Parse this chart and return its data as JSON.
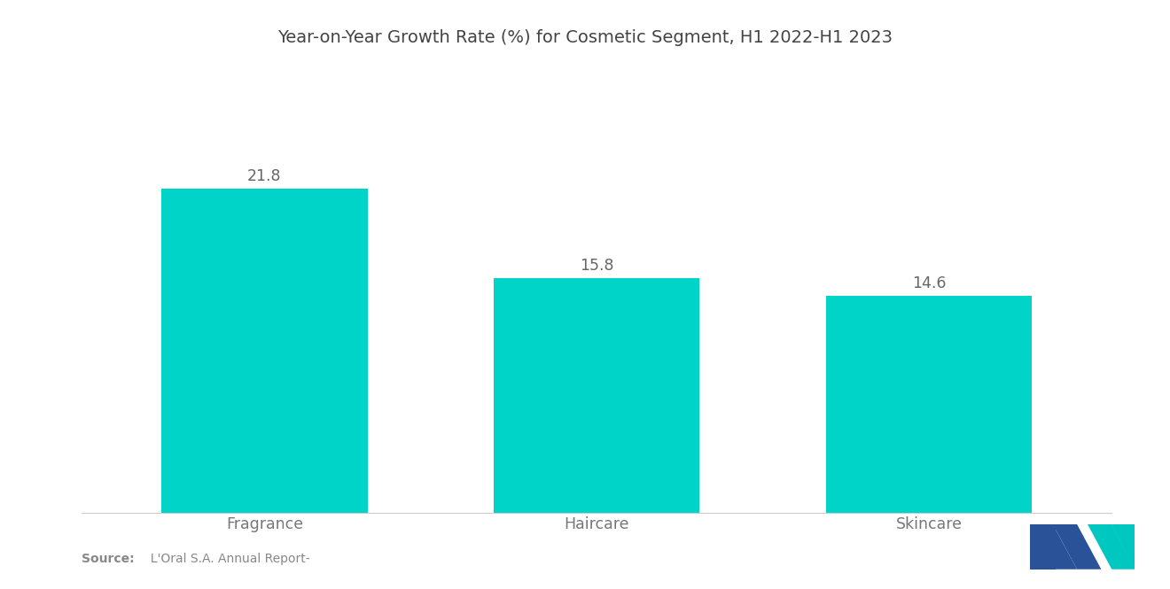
{
  "title": "Year-on-Year Growth Rate (%) for Cosmetic Segment, H1 2022-H1 2023",
  "categories": [
    "Fragrance",
    "Haircare",
    "Skincare"
  ],
  "values": [
    21.8,
    15.8,
    14.6
  ],
  "bar_color": "#00D4C8",
  "background_color": "#ffffff",
  "title_fontsize": 14,
  "label_fontsize": 12.5,
  "value_fontsize": 12.5,
  "source_bold": "Source:",
  "source_rest": "  L'Oral S.A. Annual Report-",
  "ylim": [
    0,
    27
  ],
  "bar_width": 0.62,
  "xlim_left": -0.55,
  "xlim_right": 2.55
}
